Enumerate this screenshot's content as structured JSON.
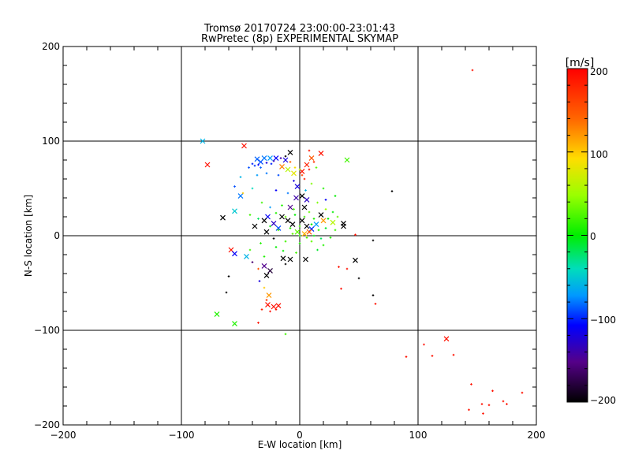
{
  "chart_data": {
    "type": "scatter",
    "title": "Tromsø 20170724 23:00:00-23:01:43",
    "subtitle": "RwPretec (8p) EXPERIMENTAL SKYMAP",
    "xlabel": "E-W location [km]",
    "ylabel": "N-S location [km]",
    "xlim": [
      -200,
      200
    ],
    "ylim": [
      -200,
      200
    ],
    "xticks": [
      "−200",
      "−100",
      "0",
      "100",
      "200"
    ],
    "yticks": [
      "−200",
      "−100",
      "0",
      "100",
      "200"
    ],
    "grid": true,
    "colorbar": {
      "label": "[m/s]",
      "range": [
        -200,
        200
      ],
      "ticks": [
        "200",
        "100",
        "0",
        "−100",
        "−200"
      ]
    },
    "series": [
      {
        "name": "x-markers",
        "marker": "x",
        "points": [
          {
            "x": -82,
            "y": 100,
            "v": -60
          },
          {
            "x": -47,
            "y": 95,
            "v": 190
          },
          {
            "x": -78,
            "y": 75,
            "v": 190
          },
          {
            "x": -36,
            "y": 81,
            "v": -85
          },
          {
            "x": -33,
            "y": 78,
            "v": -90
          },
          {
            "x": -30,
            "y": 82,
            "v": -80
          },
          {
            "x": -25,
            "y": 82,
            "v": -70
          },
          {
            "x": -20,
            "y": 82,
            "v": -110
          },
          {
            "x": -12,
            "y": 80,
            "v": -120
          },
          {
            "x": -8,
            "y": 88,
            "v": -200
          },
          {
            "x": -15,
            "y": 73,
            "v": 130
          },
          {
            "x": -10,
            "y": 70,
            "v": 60
          },
          {
            "x": -5,
            "y": 66,
            "v": 80
          },
          {
            "x": 2,
            "y": 68,
            "v": 190
          },
          {
            "x": 6,
            "y": 75,
            "v": 180
          },
          {
            "x": 10,
            "y": 82,
            "v": 150
          },
          {
            "x": 18,
            "y": 87,
            "v": 190
          },
          {
            "x": 40,
            "y": 80,
            "v": 20
          },
          {
            "x": -2,
            "y": 52,
            "v": -120
          },
          {
            "x": -50,
            "y": 42,
            "v": -80
          },
          {
            "x": -3,
            "y": 40,
            "v": -140
          },
          {
            "x": 2,
            "y": 42,
            "v": -200
          },
          {
            "x": 6,
            "y": 38,
            "v": -130
          },
          {
            "x": -8,
            "y": 30,
            "v": -150
          },
          {
            "x": 4,
            "y": 30,
            "v": -200
          },
          {
            "x": -55,
            "y": 26,
            "v": -50
          },
          {
            "x": -27,
            "y": 20,
            "v": -110
          },
          {
            "x": -65,
            "y": 19,
            "v": -200
          },
          {
            "x": -30,
            "y": 16,
            "v": -200
          },
          {
            "x": -22,
            "y": 13,
            "v": -130
          },
          {
            "x": -15,
            "y": 20,
            "v": -200
          },
          {
            "x": -10,
            "y": 16,
            "v": -200
          },
          {
            "x": -6,
            "y": 12,
            "v": -200
          },
          {
            "x": 2,
            "y": 16,
            "v": -200
          },
          {
            "x": 6,
            "y": 10,
            "v": -200
          },
          {
            "x": 10,
            "y": 7,
            "v": -100
          },
          {
            "x": 14,
            "y": 12,
            "v": -70
          },
          {
            "x": 18,
            "y": 22,
            "v": -200
          },
          {
            "x": 20,
            "y": 16,
            "v": 120
          },
          {
            "x": -38,
            "y": 10,
            "v": -200
          },
          {
            "x": -28,
            "y": 4,
            "v": -200
          },
          {
            "x": -18,
            "y": 8,
            "v": -90
          },
          {
            "x": -2,
            "y": 4,
            "v": 30
          },
          {
            "x": 4,
            "y": 2,
            "v": 110
          },
          {
            "x": 8,
            "y": 4,
            "v": 150
          },
          {
            "x": 28,
            "y": 14,
            "v": 60
          },
          {
            "x": 37,
            "y": 13,
            "v": -200
          },
          {
            "x": 37,
            "y": 10,
            "v": -200
          },
          {
            "x": 47,
            "y": -26,
            "v": -200
          },
          {
            "x": 5,
            "y": -25,
            "v": -200
          },
          {
            "x": -58,
            "y": -15,
            "v": 190
          },
          {
            "x": -55,
            "y": -19,
            "v": -110
          },
          {
            "x": -45,
            "y": -22,
            "v": -60
          },
          {
            "x": -14,
            "y": -24,
            "v": -200
          },
          {
            "x": -8,
            "y": -25,
            "v": -200
          },
          {
            "x": -30,
            "y": -32,
            "v": -150
          },
          {
            "x": -25,
            "y": -37,
            "v": -180
          },
          {
            "x": -28,
            "y": -42,
            "v": -200
          },
          {
            "x": -26,
            "y": -63,
            "v": 120
          },
          {
            "x": -27,
            "y": -73,
            "v": 190
          },
          {
            "x": -22,
            "y": -75,
            "v": 190
          },
          {
            "x": -18,
            "y": -74,
            "v": 190
          },
          {
            "x": -70,
            "y": -83,
            "v": 10
          },
          {
            "x": -55,
            "y": -93,
            "v": 10
          },
          {
            "x": 124,
            "y": -109,
            "v": 190
          }
        ]
      },
      {
        "name": "small-markers",
        "marker": "+",
        "points": [
          {
            "x": 146,
            "y": 175,
            "v": 190
          },
          {
            "x": 78,
            "y": 47,
            "v": -200
          },
          {
            "x": -60,
            "y": -43,
            "v": -200
          },
          {
            "x": -62,
            "y": -60,
            "v": -200
          },
          {
            "x": 50,
            "y": -45,
            "v": -200
          },
          {
            "x": 62,
            "y": -5,
            "v": -200
          },
          {
            "x": 47,
            "y": 1,
            "v": 190
          },
          {
            "x": 33,
            "y": -33,
            "v": 190
          },
          {
            "x": 40,
            "y": -35,
            "v": 190
          },
          {
            "x": 35,
            "y": -56,
            "v": 190
          },
          {
            "x": 62,
            "y": -63,
            "v": -200
          },
          {
            "x": 64,
            "y": -72,
            "v": 190
          },
          {
            "x": -35,
            "y": -92,
            "v": 190
          },
          {
            "x": -12,
            "y": -104,
            "v": 20
          },
          {
            "x": 90,
            "y": -128,
            "v": 190
          },
          {
            "x": 105,
            "y": -115,
            "v": 190
          },
          {
            "x": 112,
            "y": -127,
            "v": 190
          },
          {
            "x": 130,
            "y": -126,
            "v": 190
          },
          {
            "x": 145,
            "y": -157,
            "v": 190
          },
          {
            "x": 143,
            "y": -184,
            "v": 190
          },
          {
            "x": 154,
            "y": -178,
            "v": 190
          },
          {
            "x": 155,
            "y": -188,
            "v": 190
          },
          {
            "x": 160,
            "y": -179,
            "v": 190
          },
          {
            "x": 163,
            "y": -164,
            "v": 190
          },
          {
            "x": 172,
            "y": -175,
            "v": 190
          },
          {
            "x": 175,
            "y": -178,
            "v": 190
          },
          {
            "x": 188,
            "y": -166,
            "v": 190
          },
          {
            "x": -43,
            "y": 72,
            "v": -90
          },
          {
            "x": -40,
            "y": 76,
            "v": -100
          },
          {
            "x": -38,
            "y": 74,
            "v": -95
          },
          {
            "x": -35,
            "y": 75,
            "v": -110
          },
          {
            "x": -33,
            "y": 72,
            "v": -85
          },
          {
            "x": -28,
            "y": 77,
            "v": -120
          },
          {
            "x": -24,
            "y": 76,
            "v": -100
          },
          {
            "x": -22,
            "y": 79,
            "v": -130
          },
          {
            "x": -16,
            "y": 82,
            "v": -140
          },
          {
            "x": -12,
            "y": 84,
            "v": -200
          },
          {
            "x": -8,
            "y": 78,
            "v": 140
          },
          {
            "x": -4,
            "y": 72,
            "v": 90
          },
          {
            "x": 0,
            "y": 70,
            "v": 60
          },
          {
            "x": 2,
            "y": 64,
            "v": 160
          },
          {
            "x": 4,
            "y": 60,
            "v": 180
          },
          {
            "x": 8,
            "y": 70,
            "v": 190
          },
          {
            "x": 12,
            "y": 78,
            "v": 170
          },
          {
            "x": 14,
            "y": 72,
            "v": 30
          },
          {
            "x": -50,
            "y": 62,
            "v": -60
          },
          {
            "x": -55,
            "y": 52,
            "v": -90
          },
          {
            "x": -48,
            "y": 45,
            "v": 100
          },
          {
            "x": -40,
            "y": 50,
            "v": -40
          },
          {
            "x": -20,
            "y": 48,
            "v": -110
          },
          {
            "x": -10,
            "y": 45,
            "v": -80
          },
          {
            "x": -5,
            "y": 58,
            "v": -120
          },
          {
            "x": 5,
            "y": 48,
            "v": -60
          },
          {
            "x": 10,
            "y": 55,
            "v": 40
          },
          {
            "x": -32,
            "y": 35,
            "v": 20
          },
          {
            "x": -25,
            "y": 30,
            "v": -70
          },
          {
            "x": -15,
            "y": 32,
            "v": 10
          },
          {
            "x": -5,
            "y": 28,
            "v": 20
          },
          {
            "x": 8,
            "y": 25,
            "v": 30
          },
          {
            "x": 15,
            "y": 35,
            "v": 40
          },
          {
            "x": 22,
            "y": 28,
            "v": 50
          },
          {
            "x": 28,
            "y": 25,
            "v": 0
          },
          {
            "x": -42,
            "y": 22,
            "v": 20
          },
          {
            "x": -35,
            "y": 18,
            "v": -20
          },
          {
            "x": -20,
            "y": 24,
            "v": 10
          },
          {
            "x": -12,
            "y": 20,
            "v": 30
          },
          {
            "x": -4,
            "y": 22,
            "v": 0
          },
          {
            "x": 4,
            "y": 20,
            "v": 20
          },
          {
            "x": 12,
            "y": 18,
            "v": 10
          },
          {
            "x": 24,
            "y": 18,
            "v": 0
          },
          {
            "x": 32,
            "y": 20,
            "v": 30
          },
          {
            "x": -25,
            "y": 10,
            "v": 0
          },
          {
            "x": -18,
            "y": 6,
            "v": 20
          },
          {
            "x": -8,
            "y": 8,
            "v": 10
          },
          {
            "x": 0,
            "y": 10,
            "v": 20
          },
          {
            "x": 10,
            "y": 12,
            "v": 0
          },
          {
            "x": 16,
            "y": 6,
            "v": 10
          },
          {
            "x": 22,
            "y": 8,
            "v": -10
          },
          {
            "x": 30,
            "y": 6,
            "v": 20
          },
          {
            "x": -6,
            "y": 2,
            "v": 30
          },
          {
            "x": 0,
            "y": 0,
            "v": 10
          },
          {
            "x": 6,
            "y": -2,
            "v": 20
          },
          {
            "x": 12,
            "y": 0,
            "v": 0
          },
          {
            "x": 18,
            "y": -3,
            "v": -20
          },
          {
            "x": 26,
            "y": -2,
            "v": 10
          },
          {
            "x": -12,
            "y": -6,
            "v": 20
          },
          {
            "x": -20,
            "y": -12,
            "v": 0
          },
          {
            "x": 0,
            "y": -8,
            "v": 10
          },
          {
            "x": 10,
            "y": -6,
            "v": 30
          },
          {
            "x": 20,
            "y": -10,
            "v": 10
          },
          {
            "x": -14,
            "y": -16,
            "v": 0
          },
          {
            "x": -3,
            "y": -18,
            "v": 20
          },
          {
            "x": -30,
            "y": -22,
            "v": 10
          },
          {
            "x": -34,
            "y": -48,
            "v": -120
          },
          {
            "x": -30,
            "y": -55,
            "v": 100
          },
          {
            "x": -28,
            "y": -68,
            "v": 170
          },
          {
            "x": -32,
            "y": -78,
            "v": 180
          },
          {
            "x": -20,
            "y": -78,
            "v": 190
          },
          {
            "x": -25,
            "y": -80,
            "v": 190
          },
          {
            "x": -40,
            "y": -28,
            "v": -160
          },
          {
            "x": -42,
            "y": -15,
            "v": 20
          },
          {
            "x": -33,
            "y": -8,
            "v": 10
          },
          {
            "x": -22,
            "y": -3,
            "v": -200
          },
          {
            "x": -12,
            "y": -30,
            "v": -200
          },
          {
            "x": -35,
            "y": -35,
            "v": 150
          },
          {
            "x": 15,
            "y": -15,
            "v": -10
          },
          {
            "x": 22,
            "y": 38,
            "v": -110
          },
          {
            "x": 30,
            "y": 42,
            "v": 0
          },
          {
            "x": 20,
            "y": 50,
            "v": 10
          },
          {
            "x": -18,
            "y": 64,
            "v": -90
          },
          {
            "x": -28,
            "y": 66,
            "v": -80
          },
          {
            "x": -36,
            "y": 64,
            "v": -70
          },
          {
            "x": 8,
            "y": 90,
            "v": 190
          }
        ]
      }
    ]
  }
}
